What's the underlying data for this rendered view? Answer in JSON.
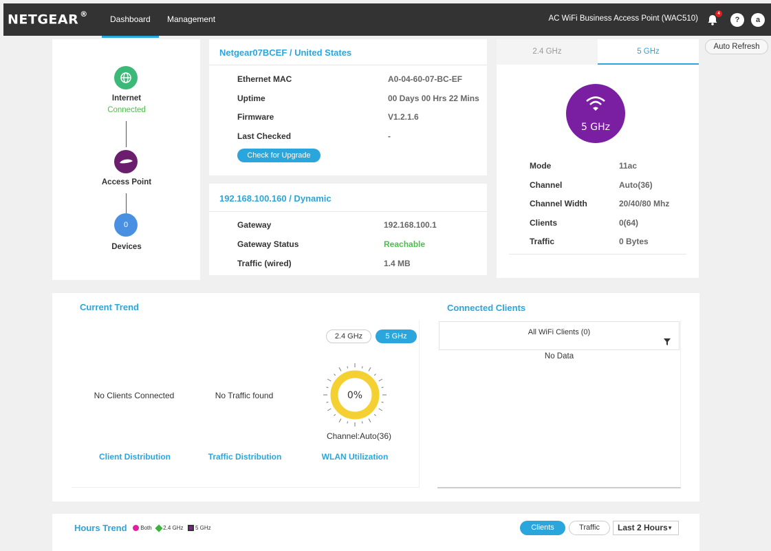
{
  "header": {
    "logo": "NETGEAR",
    "logo_mark": "®",
    "tabs": [
      {
        "label": "Dashboard"
      },
      {
        "label": "Management"
      }
    ],
    "product_name": "AC WiFi Business Access Point (WAC510)",
    "notification_count": "4",
    "help_label": "?",
    "user_initial": "a"
  },
  "topology": {
    "internet_label": "Internet",
    "internet_status": "Connected",
    "ap_label": "Access Point",
    "devices_count": "0",
    "devices_label": "Devices"
  },
  "system": {
    "title": "Netgear07BCEF / United States",
    "rows": [
      {
        "label": "Ethernet MAC",
        "value": "A0-04-60-07-BC-EF"
      },
      {
        "label": "Uptime",
        "value": "00 Days 00 Hrs 22 Mins"
      },
      {
        "label": "Firmware",
        "value": "V1.2.1.6"
      },
      {
        "label": "Last Checked",
        "value": "-"
      }
    ],
    "upgrade_button": "Check for Upgrade"
  },
  "network": {
    "title": "192.168.100.160 / Dynamic",
    "rows": [
      {
        "label": "Gateway",
        "value": "192.168.100.1"
      },
      {
        "label": "Gateway Status",
        "value": "Reachable"
      },
      {
        "label": "Traffic (wired)",
        "value": "1.4 MB"
      }
    ]
  },
  "radio": {
    "tabs": [
      {
        "label": "2.4 GHz"
      },
      {
        "label": "5 GHz"
      }
    ],
    "band_label": "5 GHz",
    "rows": [
      {
        "label": "Mode",
        "value": "11ac"
      },
      {
        "label": "Channel",
        "value": "Auto(36)"
      },
      {
        "label": "Channel Width",
        "value": "20/40/80 Mhz"
      },
      {
        "label": "Clients",
        "value": "0(64)"
      },
      {
        "label": "Traffic",
        "value": "0 Bytes"
      }
    ]
  },
  "auto_refresh": "Auto Refresh",
  "current_trend": {
    "title": "Current Trend",
    "band_toggle": [
      {
        "label": "2.4 GHz"
      },
      {
        "label": "5 GHz"
      }
    ],
    "no_clients": "No Clients Connected",
    "no_traffic": "No Traffic found",
    "utilization_value": "0%",
    "utilization_fraction": 0,
    "channel_text": "Channel:Auto(36)",
    "captions": [
      "Client Distribution",
      "Traffic Distribution",
      "WLAN Utilization"
    ]
  },
  "connected_clients": {
    "title": "Connected Clients",
    "filter_label": "All WiFi Clients (0)",
    "empty_text": "No Data"
  },
  "hours_trend": {
    "title": "Hours Trend",
    "legend": [
      {
        "label": "Both",
        "color": "#e020a0"
      },
      {
        "label": "2.4 GHz",
        "color": "#3cb43c"
      },
      {
        "label": "5 GHz",
        "color": "#7a1fa2"
      }
    ],
    "toggle": [
      {
        "label": "Clients"
      },
      {
        "label": "Traffic"
      }
    ],
    "range_selected": "Last 2 Hours"
  },
  "colors": {
    "accent": "#2aa6dd",
    "internet_node": "#3cb878",
    "ap_node": "#6b1e6e",
    "devices_node": "#4a90e2",
    "band_circle": "#7a1fa2",
    "gauge": "#f5d033"
  }
}
